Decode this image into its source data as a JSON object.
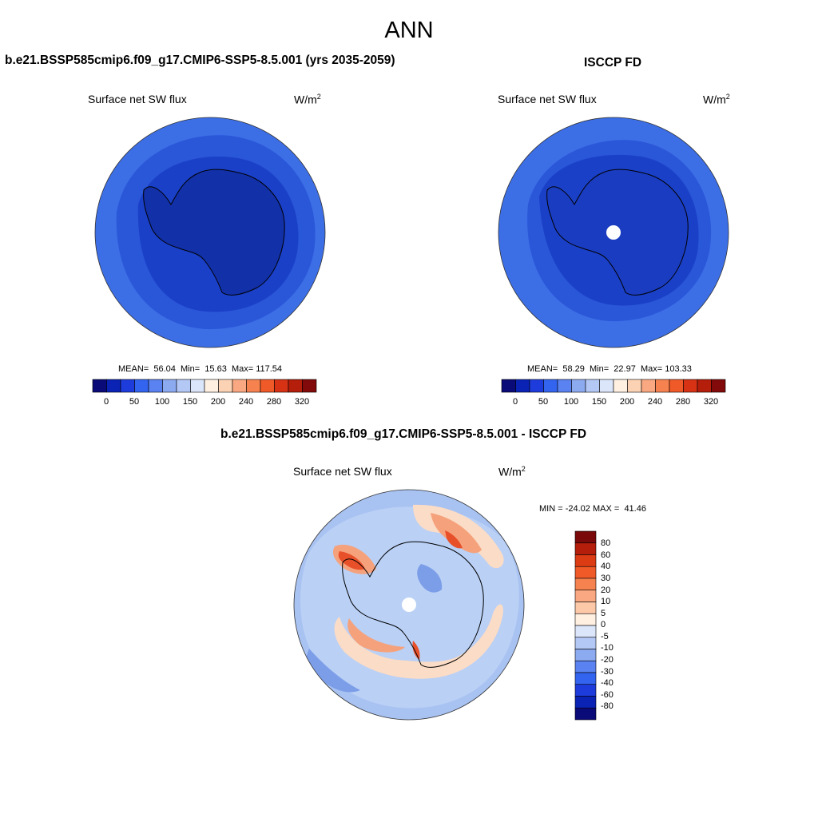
{
  "figure": {
    "title": "ANN"
  },
  "panels": {
    "left": {
      "title": "b.e21.BSSP585cmip6.f09_g17.CMIP6-SSP5-8.5.001 (yrs 2035-2059)",
      "variable": "Surface net SW flux",
      "units_base": "W/m",
      "units_exp": "2",
      "mean_label": "MEAN=",
      "mean": "56.04",
      "min_label": "Min=",
      "min": "15.63",
      "max_label": "Max=",
      "max": "117.54"
    },
    "right": {
      "title": "ISCCP FD",
      "variable": "Surface net SW flux",
      "units_base": "W/m",
      "units_exp": "2",
      "mean_label": "MEAN=",
      "mean": "58.29",
      "min_label": "Min=",
      "min": "22.97",
      "max_label": "Max=",
      "max": "103.33"
    },
    "diff": {
      "title": "b.e21.BSSP585cmip6.f09_g17.CMIP6-SSP5-8.5.001 - ISCCP FD",
      "variable": "Surface net SW flux",
      "units_base": "W/m",
      "units_exp": "2",
      "min_label": "MIN =",
      "min": "-24.02",
      "max_label": "MAX =",
      "max": "41.46"
    }
  },
  "colorbar_main": {
    "colors": [
      "#0a0a78",
      "#0a23b4",
      "#1e3cdc",
      "#3264f0",
      "#5a82f0",
      "#8caaf0",
      "#b4c8f5",
      "#dce6fa",
      "#fff0e1",
      "#fcd2b4",
      "#faa882",
      "#f5824f",
      "#f05a28",
      "#d73214",
      "#b41e0a",
      "#820a0a"
    ],
    "tick_labels": [
      "0",
      "50",
      "100",
      "150",
      "200",
      "240",
      "280",
      "320"
    ]
  },
  "colorbar_diff": {
    "colors": [
      "#7a0a0a",
      "#b41e0a",
      "#dc3c14",
      "#f05a28",
      "#f5824f",
      "#faa882",
      "#fcc8a8",
      "#fff0e1",
      "#dce6fa",
      "#b4c8f5",
      "#8caaf0",
      "#5a82f0",
      "#3264f0",
      "#1e3cdc",
      "#0a23b4",
      "#0a0a78"
    ],
    "tick_labels": [
      "80",
      "60",
      "40",
      "30",
      "20",
      "10",
      "5",
      "0",
      "-5",
      "-10",
      "-20",
      "-30",
      "-40",
      "-60",
      "-80"
    ]
  },
  "map_colors": {
    "ocean_outer": "#3c6ee6",
    "mid_band": "#2a56d8",
    "near_coast": "#1a40c8",
    "land_left": "#1230a8",
    "land_right": "#1a3cc0",
    "diff_background": "#a8c2f2",
    "diff_light": "#c7d8f6",
    "diff_mid_blue": "#7c9ee8",
    "diff_pos_weak": "#fbdcc6",
    "diff_pos_med": "#f5a27c",
    "diff_pos_strong": "#e8502a",
    "coastline": "#000000"
  }
}
